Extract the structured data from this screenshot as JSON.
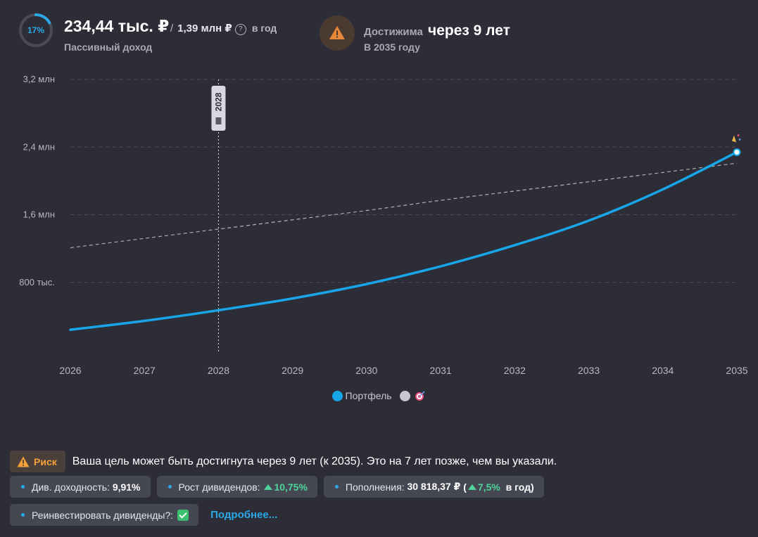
{
  "header": {
    "progress_percent": 17,
    "progress_label": "17%",
    "income_value": "234,44 тыс. ₽",
    "goal_separator": "/",
    "goal_value": "1,39 млн ₽",
    "help_icon": "?",
    "per_period": "в год",
    "income_caption": "Пассивный доход",
    "reach_label": "Достижима",
    "reach_value": "через 9 лет",
    "reach_sub": "В 2035 году"
  },
  "chart_data": {
    "type": "line",
    "x": [
      2026,
      2027,
      2028,
      2029,
      2030,
      2031,
      2032,
      2033,
      2034,
      2035
    ],
    "x_tick_labels": [
      "2026",
      "2027",
      "2028",
      "2029",
      "2030",
      "2031",
      "2032",
      "2033",
      "2034",
      "2035"
    ],
    "y_ticks": [
      800000,
      1600000,
      2400000,
      3200000
    ],
    "y_tick_labels": [
      "800 тыс.",
      "1,6 млн",
      "2,4 млн",
      "3,2 млн"
    ],
    "ylim": [
      0,
      3200000
    ],
    "series": [
      {
        "name": "Портфель",
        "color": "#18a6e8",
        "style": "solid",
        "values": [
          240000,
          345000,
          470000,
          610000,
          780000,
          990000,
          1240000,
          1530000,
          1900000,
          2340000
        ]
      },
      {
        "name": "",
        "color": "#c8c8d0",
        "style": "dashed",
        "values": [
          1210000,
          1320000,
          1430000,
          1540000,
          1650000,
          1770000,
          1880000,
          1990000,
          2100000,
          2210000
        ]
      }
    ],
    "marker": {
      "x": 2028,
      "label": "2028"
    },
    "grid": true
  },
  "legend": {
    "portfolio_label": "Портфель",
    "portfolio_color": "#18a6e8",
    "target_color": "#c8c8d0"
  },
  "risk": {
    "badge_label": "Риск",
    "message": "Ваша цель может быть достигнута через 9 лет (к 2035). Это на 7 лет позже, чем вы указали."
  },
  "chips": {
    "div_yield_label": "Див. доходность:",
    "div_yield_value": "9,91%",
    "div_growth_label": "Рост дивидендов:",
    "div_growth_value": "10,75%",
    "contributions_label": "Пополнения:",
    "contributions_value": "30 818,37 ₽",
    "contributions_open": "(",
    "contributions_growth": "7,5%",
    "contributions_period": "в год)",
    "reinvest_label": "Реинвестировать дивиденды?:",
    "more_link": "Подробнее..."
  }
}
